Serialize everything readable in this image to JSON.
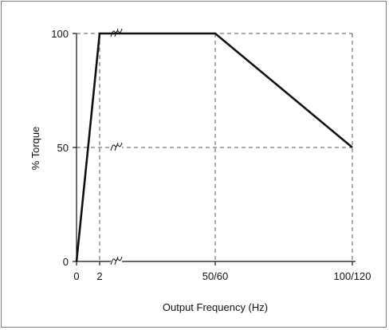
{
  "chart_data": {
    "type": "line",
    "title": "",
    "xlabel": "Output Frequency (Hz)",
    "ylabel": "% Torque",
    "x_ticks": [
      {
        "pos": 0,
        "label": "0"
      },
      {
        "pos": 2,
        "label": "2"
      },
      {
        "pos": 7,
        "label": "50/60"
      },
      {
        "pos": 13,
        "label": "100/120"
      }
    ],
    "y_ticks": [
      {
        "value": 0,
        "label": "0"
      },
      {
        "value": 50,
        "label": "50"
      },
      {
        "value": 100,
        "label": "100"
      }
    ],
    "xlim": [
      0,
      13
    ],
    "ylim": [
      0,
      100
    ],
    "axis_breaks": [
      "x",
      "y"
    ],
    "grid": "dashed at 2, 50/60, 100/120 and 50, 100",
    "series": [
      {
        "points": [
          {
            "pos": 0,
            "y": 0
          },
          {
            "pos": 2,
            "y": 100
          },
          {
            "pos": 7,
            "y": 100
          },
          {
            "pos": 13,
            "y": 50
          }
        ]
      }
    ],
    "colors": {
      "line": "#111111",
      "axis": "#111111",
      "grid": "#555555",
      "frame": "#7a7a7a"
    }
  }
}
